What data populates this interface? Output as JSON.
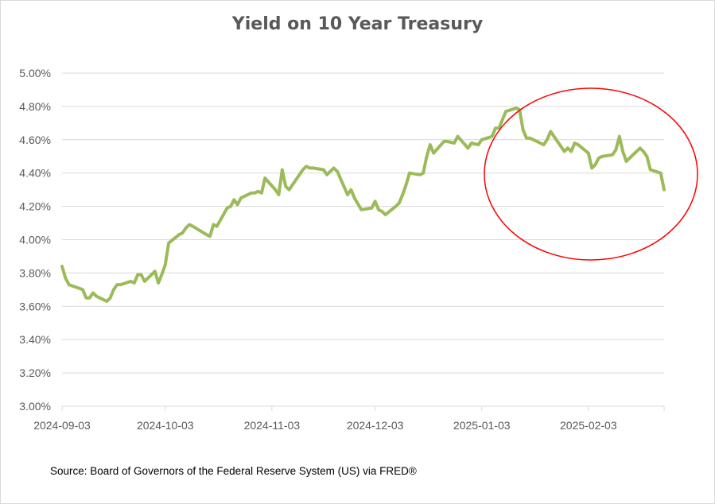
{
  "chart_data": {
    "type": "line",
    "title": "Yield on 10 Year Treasury",
    "xlabel": "",
    "ylabel": "",
    "ylim": [
      3.0,
      5.0
    ],
    "y_ticks": [
      "3.00%",
      "3.20%",
      "3.40%",
      "3.60%",
      "3.80%",
      "4.00%",
      "4.20%",
      "4.40%",
      "4.60%",
      "4.80%",
      "5.00%"
    ],
    "x_ticks": [
      "2024-09-03",
      "2024-10-03",
      "2024-11-03",
      "2024-12-03",
      "2025-01-03",
      "2025-02-03"
    ],
    "grid": "horizontal",
    "line_color": "#9bbb59",
    "annotation_color": "#ff0000",
    "annotation_shape": "ellipse",
    "series": [
      {
        "values": [
          [
            "2024-09-03",
            3.84
          ],
          [
            "2024-09-04",
            3.77
          ],
          [
            "2024-09-05",
            3.73
          ],
          [
            "2024-09-09",
            3.7
          ],
          [
            "2024-09-10",
            3.65
          ],
          [
            "2024-09-11",
            3.65
          ],
          [
            "2024-09-12",
            3.68
          ],
          [
            "2024-09-13",
            3.66
          ],
          [
            "2024-09-16",
            3.63
          ],
          [
            "2024-09-17",
            3.65
          ],
          [
            "2024-09-18",
            3.7
          ],
          [
            "2024-09-19",
            3.73
          ],
          [
            "2024-09-20",
            3.73
          ],
          [
            "2024-09-23",
            3.75
          ],
          [
            "2024-09-24",
            3.74
          ],
          [
            "2024-09-25",
            3.79
          ],
          [
            "2024-09-26",
            3.79
          ],
          [
            "2024-09-27",
            3.75
          ],
          [
            "2024-09-30",
            3.81
          ],
          [
            "2024-10-01",
            3.74
          ],
          [
            "2024-10-02",
            3.79
          ],
          [
            "2024-10-03",
            3.85
          ],
          [
            "2024-10-04",
            3.98
          ],
          [
            "2024-10-07",
            4.03
          ],
          [
            "2024-10-08",
            4.04
          ],
          [
            "2024-10-09",
            4.07
          ],
          [
            "2024-10-10",
            4.09
          ],
          [
            "2024-10-11",
            4.08
          ],
          [
            "2024-10-15",
            4.03
          ],
          [
            "2024-10-16",
            4.02
          ],
          [
            "2024-10-17",
            4.09
          ],
          [
            "2024-10-18",
            4.08
          ],
          [
            "2024-10-21",
            4.19
          ],
          [
            "2024-10-22",
            4.2
          ],
          [
            "2024-10-23",
            4.24
          ],
          [
            "2024-10-24",
            4.21
          ],
          [
            "2024-10-25",
            4.25
          ],
          [
            "2024-10-28",
            4.28
          ],
          [
            "2024-10-29",
            4.28
          ],
          [
            "2024-10-30",
            4.29
          ],
          [
            "2024-10-31",
            4.28
          ],
          [
            "2024-11-01",
            4.37
          ],
          [
            "2024-11-04",
            4.3
          ],
          [
            "2024-11-05",
            4.27
          ],
          [
            "2024-11-06",
            4.42
          ],
          [
            "2024-11-07",
            4.32
          ],
          [
            "2024-11-08",
            4.3
          ],
          [
            "2024-11-12",
            4.42
          ],
          [
            "2024-11-13",
            4.44
          ],
          [
            "2024-11-14",
            4.43
          ],
          [
            "2024-11-15",
            4.43
          ],
          [
            "2024-11-18",
            4.42
          ],
          [
            "2024-11-19",
            4.39
          ],
          [
            "2024-11-20",
            4.41
          ],
          [
            "2024-11-21",
            4.43
          ],
          [
            "2024-11-22",
            4.41
          ],
          [
            "2024-11-25",
            4.27
          ],
          [
            "2024-11-26",
            4.3
          ],
          [
            "2024-11-27",
            4.25
          ],
          [
            "2024-11-29",
            4.18
          ],
          [
            "2024-12-02",
            4.19
          ],
          [
            "2024-12-03",
            4.23
          ],
          [
            "2024-12-04",
            4.18
          ],
          [
            "2024-12-05",
            4.17
          ],
          [
            "2024-12-06",
            4.15
          ],
          [
            "2024-12-09",
            4.2
          ],
          [
            "2024-12-10",
            4.22
          ],
          [
            "2024-12-11",
            4.27
          ],
          [
            "2024-12-12",
            4.33
          ],
          [
            "2024-12-13",
            4.4
          ],
          [
            "2024-12-16",
            4.39
          ],
          [
            "2024-12-17",
            4.4
          ],
          [
            "2024-12-18",
            4.5
          ],
          [
            "2024-12-19",
            4.57
          ],
          [
            "2024-12-20",
            4.52
          ],
          [
            "2024-12-23",
            4.59
          ],
          [
            "2024-12-24",
            4.59
          ],
          [
            "2024-12-26",
            4.58
          ],
          [
            "2024-12-27",
            4.62
          ],
          [
            "2024-12-30",
            4.55
          ],
          [
            "2024-12-31",
            4.58
          ],
          [
            "2025-01-02",
            4.57
          ],
          [
            "2025-01-03",
            4.6
          ],
          [
            "2025-01-06",
            4.62
          ],
          [
            "2025-01-07",
            4.67
          ],
          [
            "2025-01-08",
            4.67
          ],
          [
            "2025-01-10",
            4.77
          ],
          [
            "2025-01-13",
            4.79
          ],
          [
            "2025-01-14",
            4.78
          ],
          [
            "2025-01-15",
            4.66
          ],
          [
            "2025-01-16",
            4.61
          ],
          [
            "2025-01-17",
            4.61
          ],
          [
            "2025-01-21",
            4.57
          ],
          [
            "2025-01-22",
            4.6
          ],
          [
            "2025-01-23",
            4.65
          ],
          [
            "2025-01-24",
            4.62
          ],
          [
            "2025-01-27",
            4.53
          ],
          [
            "2025-01-28",
            4.55
          ],
          [
            "2025-01-29",
            4.53
          ],
          [
            "2025-01-30",
            4.58
          ],
          [
            "2025-01-31",
            4.57
          ],
          [
            "2025-02-03",
            4.52
          ],
          [
            "2025-02-04",
            4.43
          ],
          [
            "2025-02-05",
            4.45
          ],
          [
            "2025-02-06",
            4.49
          ],
          [
            "2025-02-07",
            4.5
          ],
          [
            "2025-02-10",
            4.51
          ],
          [
            "2025-02-11",
            4.54
          ],
          [
            "2025-02-12",
            4.62
          ],
          [
            "2025-02-13",
            4.53
          ],
          [
            "2025-02-14",
            4.47
          ],
          [
            "2025-02-18",
            4.55
          ],
          [
            "2025-02-19",
            4.53
          ],
          [
            "2025-02-20",
            4.5
          ],
          [
            "2025-02-21",
            4.42
          ],
          [
            "2025-02-24",
            4.4
          ],
          [
            "2025-02-25",
            4.3
          ]
        ]
      }
    ]
  },
  "source_note": "Source: Board of Governors of the Federal Reserve System (US) via FRED®"
}
